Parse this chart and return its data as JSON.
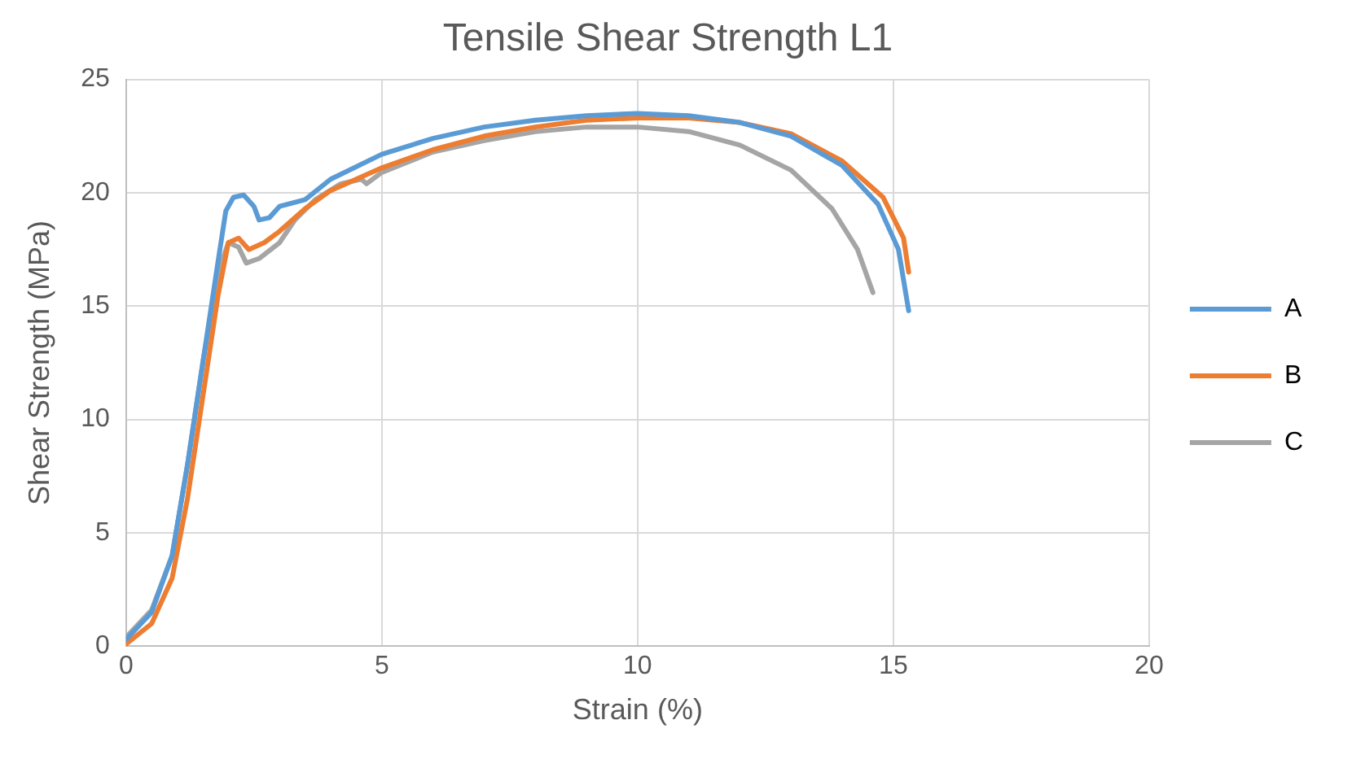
{
  "chart_data": {
    "type": "line",
    "title": "Tensile Shear Strength L1",
    "xlabel": "Strain (%)",
    "ylabel": "Shear Strength (MPa)",
    "xlim": [
      0,
      20
    ],
    "xticks": [
      0,
      5,
      10,
      15,
      20
    ],
    "ylim": [
      0,
      25
    ],
    "yticks": [
      0,
      5,
      10,
      15,
      20,
      25
    ],
    "grid": true,
    "legend": "right",
    "marker": "none",
    "line_style": "solid",
    "series": [
      {
        "name": "A",
        "color": "#5b9bd5",
        "x": [
          0,
          0.5,
          0.9,
          1.2,
          1.5,
          1.8,
          1.95,
          2.1,
          2.3,
          2.5,
          2.6,
          2.8,
          3.0,
          3.5,
          4,
          5,
          6,
          7,
          8,
          9,
          10,
          11,
          12,
          13,
          14,
          14.7,
          15.1,
          15.3
        ],
        "values": [
          0.3,
          1.5,
          4,
          8,
          12.5,
          17,
          19.2,
          19.8,
          19.9,
          19.4,
          18.8,
          18.9,
          19.4,
          19.7,
          20.6,
          21.7,
          22.4,
          22.9,
          23.2,
          23.4,
          23.5,
          23.4,
          23.1,
          22.5,
          21.2,
          19.5,
          17.5,
          14.8
        ]
      },
      {
        "name": "B",
        "color": "#ed7d31",
        "x": [
          0,
          0.5,
          0.9,
          1.2,
          1.5,
          1.8,
          2.0,
          2.2,
          2.4,
          2.7,
          3,
          3.5,
          4,
          5,
          6,
          7,
          8,
          9,
          10,
          11,
          12,
          13,
          14,
          14.8,
          15.2,
          15.3
        ],
        "values": [
          0.1,
          1,
          3,
          6.5,
          11,
          15.5,
          17.8,
          18,
          17.5,
          17.8,
          18.3,
          19.3,
          20.1,
          21.1,
          21.9,
          22.5,
          22.9,
          23.2,
          23.3,
          23.3,
          23.1,
          22.6,
          21.4,
          19.8,
          18,
          16.5
        ]
      },
      {
        "name": "C",
        "color": "#a5a5a5",
        "x": [
          0,
          0.5,
          0.9,
          1.2,
          1.5,
          1.8,
          2.0,
          2.2,
          2.35,
          2.6,
          3,
          3.3,
          3.7,
          4.2,
          4.6,
          4.7,
          5,
          6,
          7,
          8,
          9,
          10,
          11,
          12,
          13,
          13.8,
          14.3,
          14.6
        ],
        "values": [
          0.4,
          1.6,
          4,
          8,
          12.5,
          16.5,
          17.8,
          17.6,
          16.9,
          17.1,
          17.8,
          18.8,
          19.7,
          20.4,
          20.6,
          20.4,
          20.9,
          21.8,
          22.3,
          22.7,
          22.9,
          22.9,
          22.7,
          22.1,
          21,
          19.3,
          17.5,
          15.6
        ]
      }
    ]
  }
}
